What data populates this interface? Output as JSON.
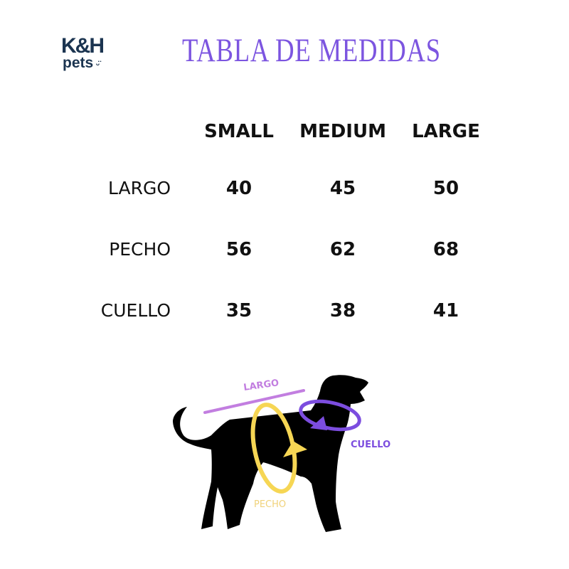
{
  "logo": {
    "line1": "K&H",
    "line2": "pets"
  },
  "title": "TABLA DE MEDIDAS",
  "table": {
    "columns": [
      "SMALL",
      "MEDIUM",
      "LARGE"
    ],
    "rows": [
      {
        "label": "LARGO",
        "values": [
          "40",
          "45",
          "50"
        ]
      },
      {
        "label": "PECHO",
        "values": [
          "56",
          "62",
          "68"
        ]
      },
      {
        "label": "CUELLO",
        "values": [
          "35",
          "38",
          "41"
        ]
      }
    ]
  },
  "diagram": {
    "largo_label": "LARGO",
    "pecho_label": "PECHO",
    "cuello_label": "CUELLO",
    "colors": {
      "largo": "#c27ee0",
      "pecho": "#f6d654",
      "cuello": "#7c4ddf",
      "title": "#7c55e0",
      "logo": "#1b3450"
    }
  }
}
